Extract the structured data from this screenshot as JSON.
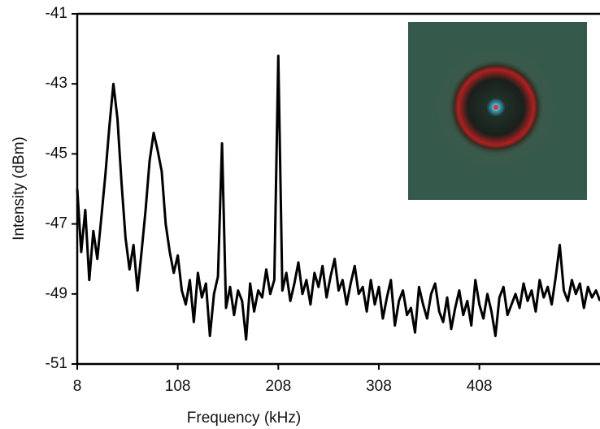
{
  "chart_data": {
    "type": "line",
    "x_label": "Frequency (kHz)",
    "y_label": "Intensity (dBm)",
    "xlim": [
      8,
      528
    ],
    "xticks": [
      8,
      108,
      208,
      308,
      408
    ],
    "ylim": [
      -51,
      -41
    ],
    "yticks": [
      -41,
      -43,
      -45,
      -47,
      -49,
      -51
    ],
    "series": [
      {
        "color": "#000000",
        "x": [
          8,
          12,
          16,
          20,
          24,
          28,
          32,
          36,
          40,
          44,
          48,
          52,
          56,
          60,
          64,
          68,
          72,
          76,
          80,
          84,
          88,
          92,
          96,
          100,
          104,
          108,
          112,
          116,
          120,
          124,
          128,
          132,
          136,
          140,
          144,
          148,
          152,
          156,
          160,
          164,
          168,
          172,
          176,
          180,
          184,
          188,
          192,
          196,
          200,
          204,
          208,
          212,
          216,
          220,
          224,
          228,
          232,
          236,
          240,
          244,
          248,
          252,
          256,
          260,
          264,
          268,
          272,
          276,
          280,
          284,
          288,
          292,
          296,
          300,
          304,
          308,
          312,
          316,
          320,
          324,
          328,
          332,
          336,
          340,
          344,
          348,
          352,
          356,
          360,
          364,
          368,
          372,
          376,
          380,
          384,
          388,
          392,
          396,
          400,
          404,
          408,
          412,
          416,
          420,
          424,
          428,
          432,
          436,
          440,
          444,
          448,
          452,
          456,
          460,
          464,
          468,
          472,
          476,
          480,
          484,
          488,
          492,
          496,
          500,
          504,
          508,
          512,
          516,
          520,
          524,
          528
        ],
        "values": [
          -46.0,
          -47.8,
          -46.6,
          -48.6,
          -47.2,
          -48.0,
          -46.8,
          -45.6,
          -44.2,
          -43.0,
          -44.0,
          -45.8,
          -47.4,
          -48.3,
          -47.6,
          -48.9,
          -47.8,
          -46.6,
          -45.2,
          -44.4,
          -44.9,
          -45.5,
          -47.0,
          -47.8,
          -48.4,
          -47.9,
          -48.9,
          -49.3,
          -48.6,
          -49.8,
          -48.4,
          -49.1,
          -48.7,
          -50.2,
          -49.0,
          -48.5,
          -44.7,
          -49.4,
          -48.8,
          -49.6,
          -48.9,
          -49.2,
          -50.3,
          -48.7,
          -49.5,
          -48.9,
          -49.1,
          -48.3,
          -49.0,
          -48.6,
          -42.2,
          -48.9,
          -48.4,
          -49.2,
          -48.7,
          -48.1,
          -49.0,
          -48.6,
          -49.3,
          -48.4,
          -48.8,
          -48.2,
          -49.1,
          -48.5,
          -48.0,
          -48.9,
          -48.6,
          -49.3,
          -48.7,
          -48.2,
          -49.0,
          -48.8,
          -49.5,
          -48.6,
          -49.3,
          -48.8,
          -49.7,
          -49.1,
          -48.6,
          -49.9,
          -49.2,
          -48.9,
          -49.6,
          -49.4,
          -50.1,
          -48.8,
          -49.3,
          -49.7,
          -49.0,
          -48.7,
          -49.5,
          -49.8,
          -49.1,
          -50.0,
          -49.4,
          -48.9,
          -49.6,
          -49.2,
          -49.9,
          -48.6,
          -49.3,
          -49.7,
          -49.0,
          -49.5,
          -50.2,
          -49.1,
          -48.8,
          -49.6,
          -49.3,
          -49.0,
          -49.4,
          -48.7,
          -49.2,
          -48.9,
          -49.5,
          -48.6,
          -49.1,
          -48.8,
          -49.3,
          -48.5,
          -47.6,
          -48.9,
          -49.2,
          -48.6,
          -49.0,
          -48.7,
          -49.4,
          -48.8,
          -49.1,
          -48.9,
          -49.2
        ]
      }
    ]
  }
}
